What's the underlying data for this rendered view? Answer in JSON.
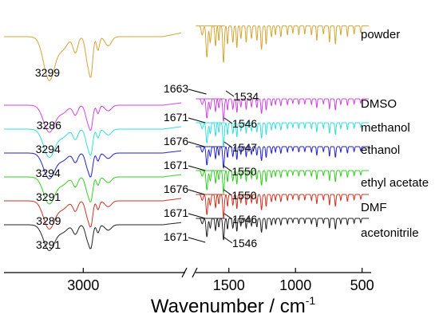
{
  "chart_data": {
    "type": "line",
    "title": "",
    "xlabel": "Wavenumber / cm",
    "xlabel_superscript": "-1",
    "ylabel": "",
    "x_axis": {
      "reversed": true,
      "broken": true,
      "ticks": [
        3000,
        1500,
        1000,
        500
      ],
      "tick_labels": [
        "3000",
        "1500",
        "1000",
        "500"
      ]
    },
    "grid": false,
    "legend": "none",
    "series": [
      {
        "name": "powder",
        "color": "#d4a537",
        "peaks": [
          {
            "x": 3299,
            "label": "3299"
          },
          {
            "x": 1663,
            "label": "1663"
          },
          {
            "x": 1534,
            "label": "1534"
          }
        ]
      },
      {
        "name": "DMSO",
        "color": "#cc44dd",
        "peaks": [
          {
            "x": 3286,
            "label": "3286"
          },
          {
            "x": 1671,
            "label": "1671"
          },
          {
            "x": 1546,
            "label": "1546"
          }
        ]
      },
      {
        "name": "methanol",
        "color": "#33dddd",
        "peaks": [
          {
            "x": 3294,
            "label": "3294"
          },
          {
            "x": 1676,
            "label": "1676"
          },
          {
            "x": 1547,
            "label": "1547"
          }
        ]
      },
      {
        "name": "ethanol",
        "color": "#2222cc",
        "peaks": [
          {
            "x": 3294,
            "label": "3294"
          },
          {
            "x": 1671,
            "label": "1671"
          },
          {
            "x": 1550,
            "label": "1550"
          }
        ]
      },
      {
        "name": "ethyl acetate",
        "color": "#33cc22",
        "peaks": [
          {
            "x": 3291,
            "label": "3291"
          },
          {
            "x": 1676,
            "label": "1676"
          },
          {
            "x": 1550,
            "label": "1550"
          }
        ]
      },
      {
        "name": "DMF",
        "color": "#cc3322",
        "peaks": [
          {
            "x": 3289,
            "label": "3289"
          },
          {
            "x": 1671,
            "label": "1671"
          },
          {
            "x": 1546,
            "label": "1546"
          }
        ]
      },
      {
        "name": "acetonitrile",
        "color": "#222222",
        "peaks": [
          {
            "x": 3291,
            "label": "3291"
          },
          {
            "x": 1671,
            "label": "1671"
          },
          {
            "x": 1546,
            "label": "1546"
          }
        ]
      }
    ]
  }
}
